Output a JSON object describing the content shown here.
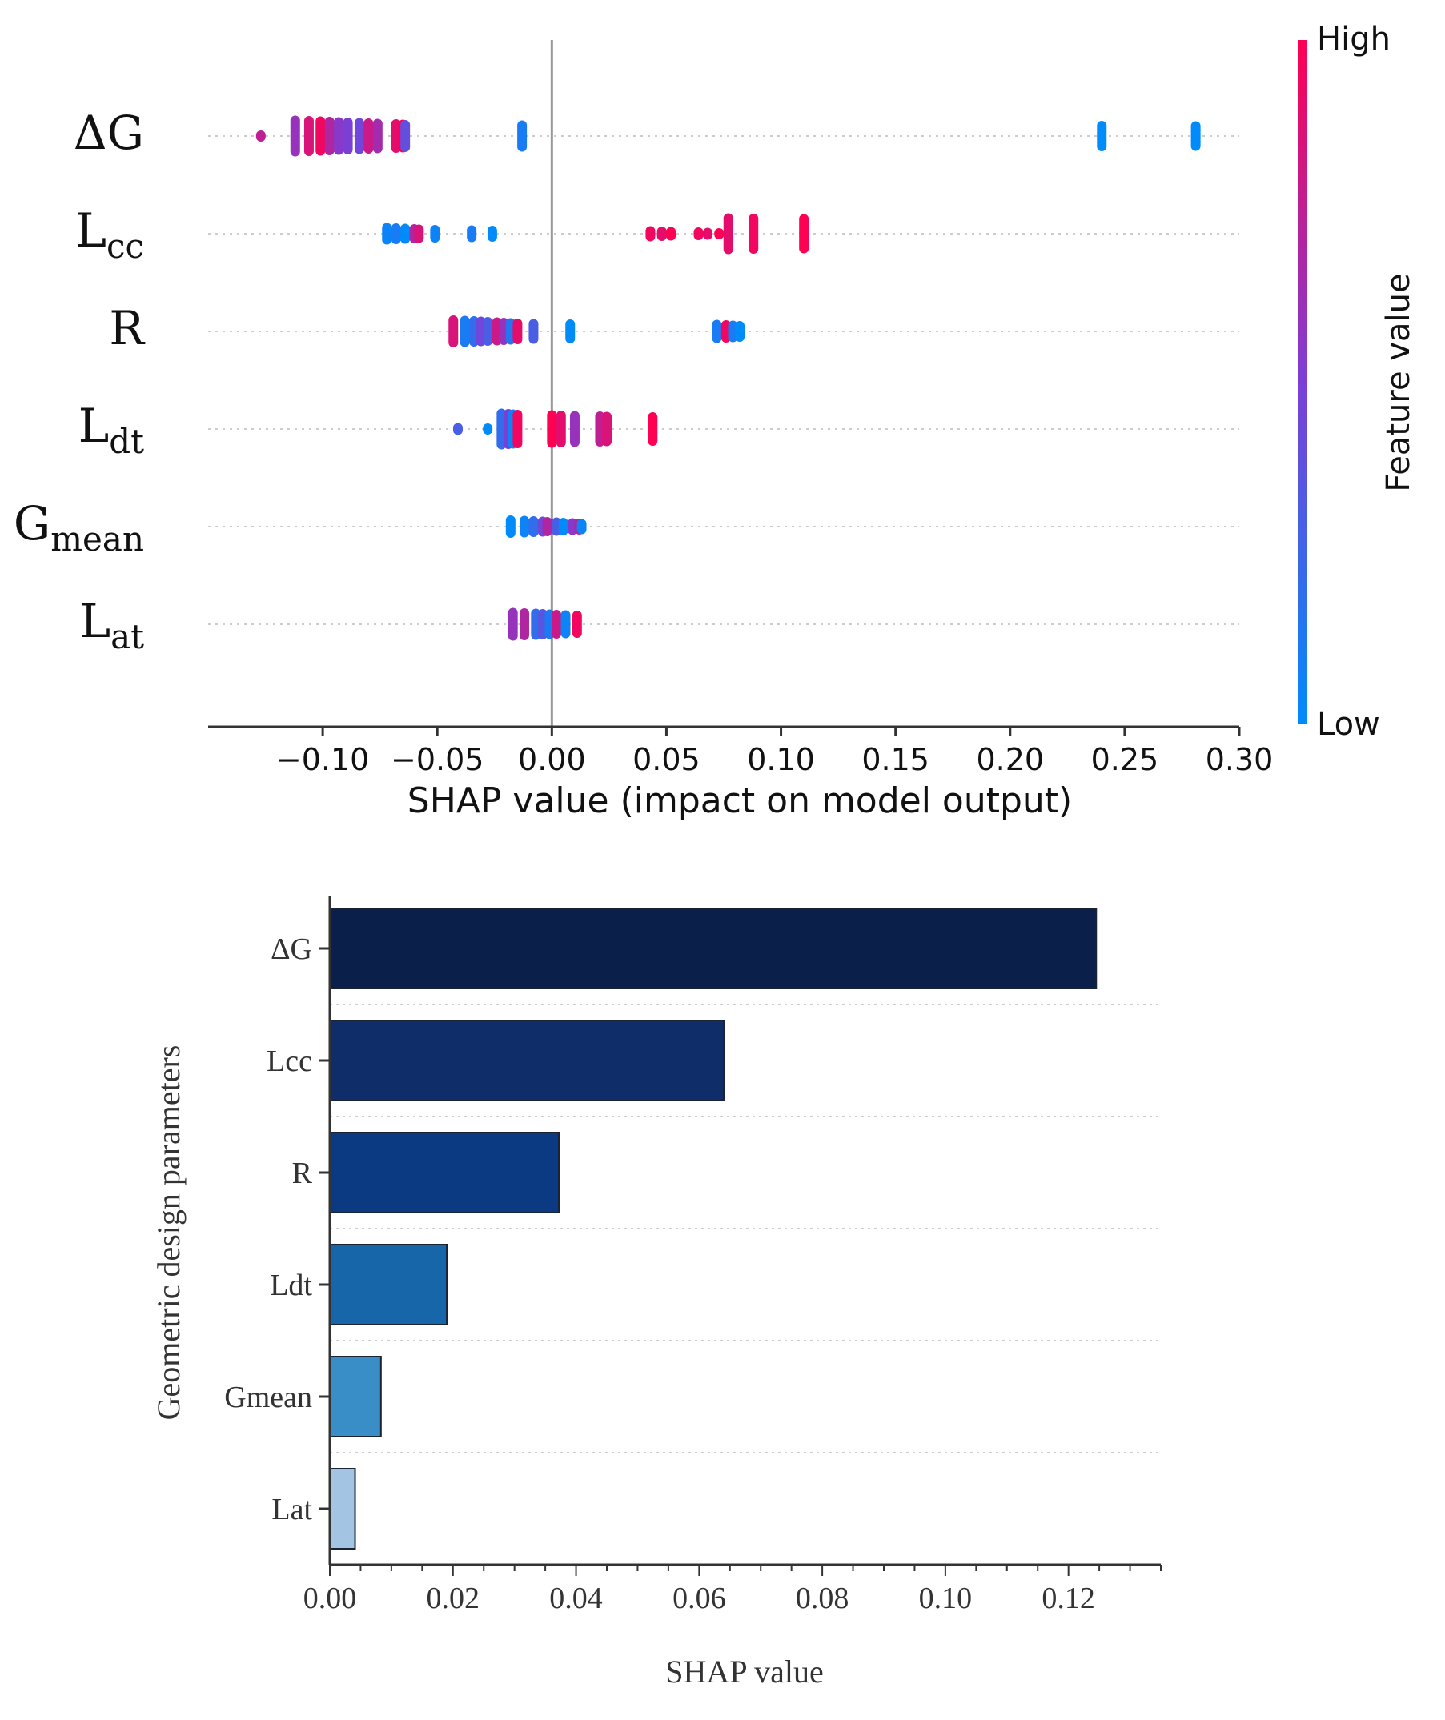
{
  "chart_data": [
    {
      "type": "scatter",
      "subtype": "shap-beeswarm",
      "xlabel": "SHAP value (impact on model output)",
      "xlim": [
        -0.15,
        0.3
      ],
      "xticks": [
        -0.1,
        -0.05,
        0.0,
        0.05,
        0.1,
        0.15,
        0.2,
        0.25,
        0.3
      ],
      "xtick_labels": [
        "−0.10",
        "−0.05",
        "0.00",
        "0.05",
        "0.10",
        "0.15",
        "0.20",
        "0.25",
        "0.30"
      ],
      "features": [
        {
          "main": "ΔG",
          "sub": ""
        },
        {
          "main": "L",
          "sub": "cc"
        },
        {
          "main": "R",
          "sub": ""
        },
        {
          "main": "L",
          "sub": "dt"
        },
        {
          "main": "G",
          "sub": "mean"
        },
        {
          "main": "L",
          "sub": "at"
        }
      ],
      "colorbar": {
        "label": "Feature value",
        "high_label": "High",
        "low_label": "Low",
        "high_color": "#ff0052",
        "mid_color": "#7c3fd6",
        "low_color": "#008bfb"
      },
      "series": [
        {
          "feature": "ΔG",
          "points": [
            {
              "x": -0.127,
              "v": 0.75
            },
            {
              "x": -0.112,
              "v": 0.6
            },
            {
              "x": -0.106,
              "v": 0.85
            },
            {
              "x": -0.101,
              "v": 0.95
            },
            {
              "x": -0.097,
              "v": 0.7
            },
            {
              "x": -0.093,
              "v": 0.55
            },
            {
              "x": -0.089,
              "v": 0.5
            },
            {
              "x": -0.084,
              "v": 0.45
            },
            {
              "x": -0.08,
              "v": 0.8
            },
            {
              "x": -0.076,
              "v": 0.65
            },
            {
              "x": -0.068,
              "v": 0.9
            },
            {
              "x": -0.065,
              "v": 1.0
            },
            {
              "x": -0.064,
              "v": 0.4
            },
            {
              "x": -0.013,
              "v": 0.1
            },
            {
              "x": 0.24,
              "v": 0.0
            },
            {
              "x": 0.281,
              "v": 0.0
            }
          ]
        },
        {
          "feature": "Lcc",
          "points": [
            {
              "x": -0.072,
              "v": 0.05
            },
            {
              "x": -0.068,
              "v": 0.1
            },
            {
              "x": -0.064,
              "v": 0.0
            },
            {
              "x": -0.06,
              "v": 0.7
            },
            {
              "x": -0.058,
              "v": 0.85
            },
            {
              "x": -0.051,
              "v": 0.05
            },
            {
              "x": -0.035,
              "v": 0.1
            },
            {
              "x": -0.026,
              "v": 0.0
            },
            {
              "x": 0.043,
              "v": 0.95
            },
            {
              "x": 0.048,
              "v": 0.9
            },
            {
              "x": 0.052,
              "v": 1.0
            },
            {
              "x": 0.064,
              "v": 0.95
            },
            {
              "x": 0.068,
              "v": 0.9
            },
            {
              "x": 0.073,
              "v": 1.0
            },
            {
              "x": 0.077,
              "v": 0.9
            },
            {
              "x": 0.088,
              "v": 0.95
            },
            {
              "x": 0.11,
              "v": 1.0
            }
          ]
        },
        {
          "feature": "R",
          "points": [
            {
              "x": -0.043,
              "v": 0.85
            },
            {
              "x": -0.038,
              "v": 0.1
            },
            {
              "x": -0.034,
              "v": 0.2
            },
            {
              "x": -0.031,
              "v": 0.45
            },
            {
              "x": -0.028,
              "v": 0.3
            },
            {
              "x": -0.024,
              "v": 0.8
            },
            {
              "x": -0.021,
              "v": 0.6
            },
            {
              "x": -0.018,
              "v": 0.15
            },
            {
              "x": -0.015,
              "v": 0.9
            },
            {
              "x": -0.008,
              "v": 0.3
            },
            {
              "x": 0.008,
              "v": 0.0
            },
            {
              "x": 0.072,
              "v": 0.1
            },
            {
              "x": 0.076,
              "v": 0.95
            },
            {
              "x": 0.079,
              "v": 0.1
            },
            {
              "x": 0.082,
              "v": 0.0
            }
          ]
        },
        {
          "feature": "Ldt",
          "points": [
            {
              "x": -0.041,
              "v": 0.3
            },
            {
              "x": -0.028,
              "v": 0.0
            },
            {
              "x": -0.022,
              "v": 0.2
            },
            {
              "x": -0.019,
              "v": 0.5
            },
            {
              "x": -0.017,
              "v": 0.05
            },
            {
              "x": -0.015,
              "v": 0.95
            },
            {
              "x": 0.0,
              "v": 1.0
            },
            {
              "x": 0.004,
              "v": 0.9
            },
            {
              "x": 0.01,
              "v": 0.6
            },
            {
              "x": 0.021,
              "v": 0.75
            },
            {
              "x": 0.024,
              "v": 0.85
            },
            {
              "x": 0.044,
              "v": 1.0
            }
          ]
        },
        {
          "feature": "Gmean",
          "points": [
            {
              "x": -0.018,
              "v": 0.0
            },
            {
              "x": -0.012,
              "v": 0.05
            },
            {
              "x": -0.008,
              "v": 0.2
            },
            {
              "x": -0.004,
              "v": 0.45
            },
            {
              "x": -0.002,
              "v": 0.7
            },
            {
              "x": 0.002,
              "v": 0.3
            },
            {
              "x": 0.005,
              "v": 0.0
            },
            {
              "x": 0.009,
              "v": 0.55
            },
            {
              "x": 0.012,
              "v": 0.75
            },
            {
              "x": 0.013,
              "v": 0.05
            }
          ]
        },
        {
          "feature": "Lat",
          "points": [
            {
              "x": -0.017,
              "v": 0.6
            },
            {
              "x": -0.012,
              "v": 0.7
            },
            {
              "x": -0.007,
              "v": 0.2
            },
            {
              "x": -0.004,
              "v": 0.35
            },
            {
              "x": -0.001,
              "v": 0.1
            },
            {
              "x": 0.002,
              "v": 0.8
            },
            {
              "x": 0.006,
              "v": 0.05
            },
            {
              "x": 0.011,
              "v": 0.95
            }
          ]
        }
      ]
    },
    {
      "type": "bar",
      "orientation": "horizontal",
      "ylabel": "Geometric design parameters",
      "xlabel": "SHAP value",
      "xlim": [
        0,
        0.135
      ],
      "xticks": [
        0.0,
        0.02,
        0.04,
        0.06,
        0.08,
        0.1,
        0.12
      ],
      "xtick_labels": [
        "0.00",
        "0.02",
        "0.04",
        "0.06",
        "0.08",
        "0.10",
        "0.12"
      ],
      "categories": [
        "ΔG",
        "Lcc",
        "R",
        "Ldt",
        "Gmean",
        "Lat"
      ],
      "values": [
        0.1245,
        0.064,
        0.0372,
        0.019,
        0.0083,
        0.0041
      ],
      "colors": [
        "#0a1f49",
        "#0f2d68",
        "#0b3a82",
        "#1866aa",
        "#3a8ec7",
        "#a3c5e3"
      ]
    }
  ]
}
